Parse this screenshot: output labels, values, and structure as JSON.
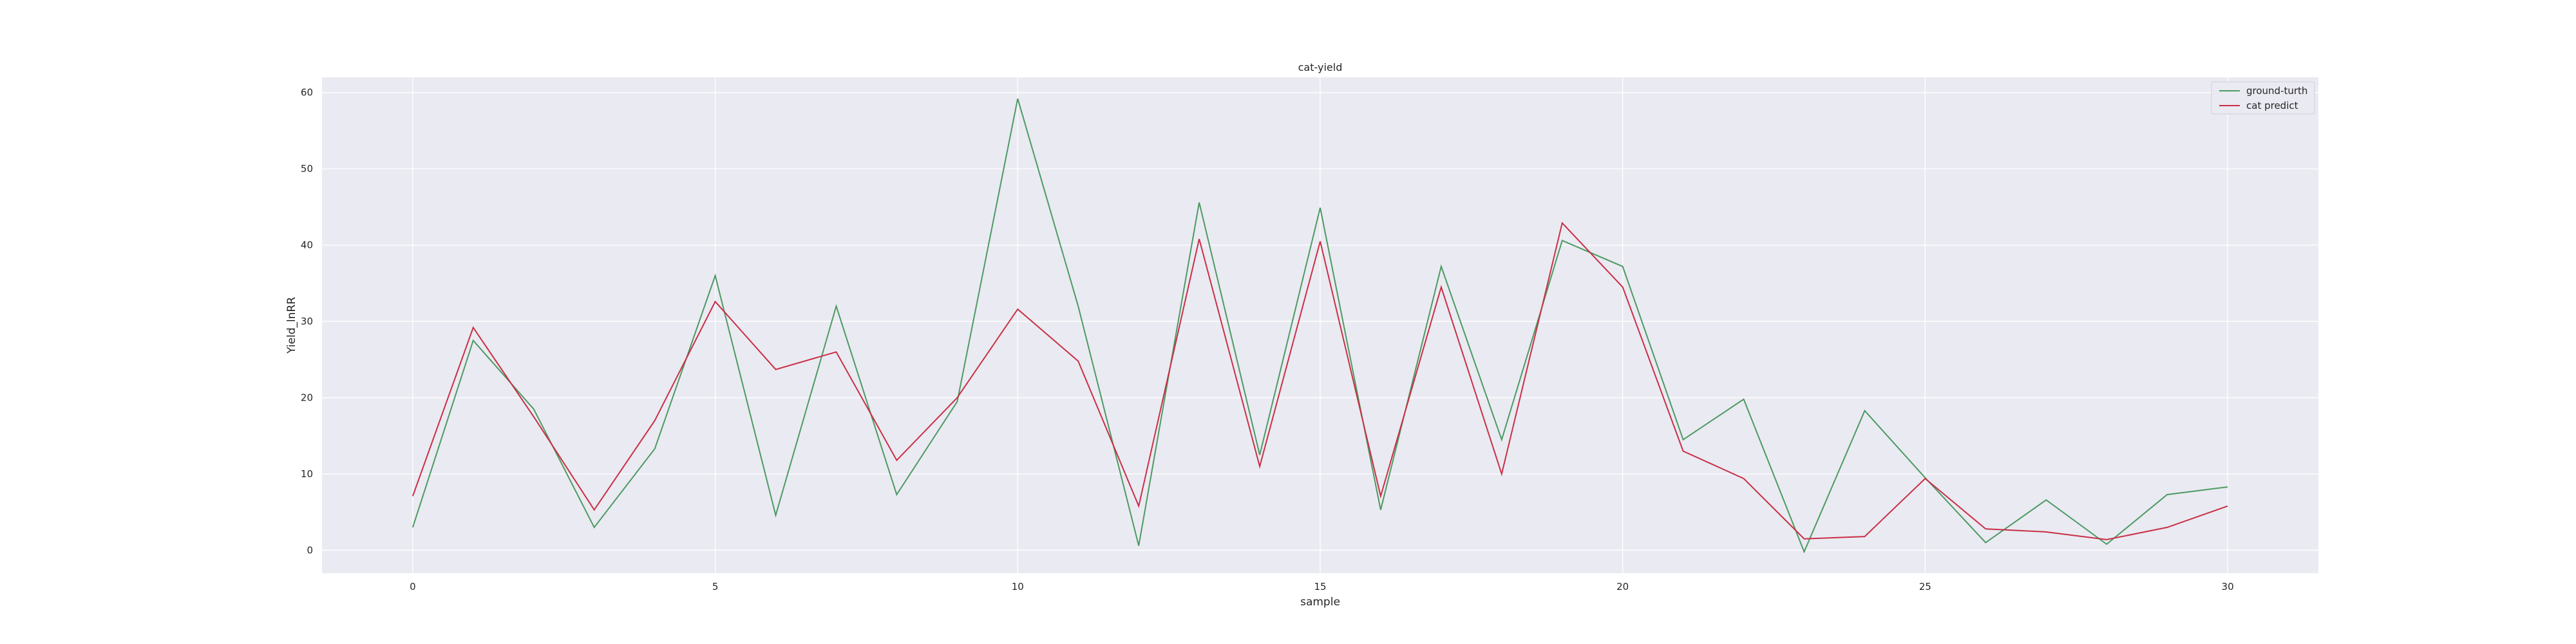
{
  "chart_data": {
    "type": "line",
    "title": "cat-yield",
    "xlabel": "sample",
    "ylabel": "Yield_lnRR",
    "xlim": [
      -1.5,
      31.5
    ],
    "ylim": [
      -3,
      62
    ],
    "xticks": [
      0,
      5,
      10,
      15,
      20,
      25,
      30
    ],
    "yticks": [
      0,
      10,
      20,
      30,
      40,
      50,
      60
    ],
    "grid": true,
    "legend_position": "top-right",
    "x": [
      0,
      1,
      2,
      3,
      4,
      5,
      6,
      7,
      8,
      9,
      10,
      11,
      12,
      13,
      14,
      15,
      16,
      17,
      18,
      19,
      20,
      21,
      22,
      23,
      24,
      25,
      26,
      27,
      28,
      29,
      30
    ],
    "series": [
      {
        "name": "ground-turth",
        "color": "#4c9a62",
        "values": [
          3.0,
          27.5,
          18.5,
          3.0,
          13.3,
          36.0,
          4.6,
          32.0,
          7.3,
          19.5,
          59.2,
          32.0,
          0.6,
          45.6,
          12.5,
          44.9,
          5.3,
          37.2,
          14.5,
          40.6,
          37.2,
          14.5,
          19.8,
          -0.2,
          18.3,
          9.5,
          1.0,
          6.6,
          0.8,
          7.3,
          8.3
        ]
      },
      {
        "name": "cat predict",
        "color": "#c92f45",
        "values": [
          7.1,
          29.2,
          17.5,
          5.3,
          17.0,
          32.6,
          23.7,
          26.0,
          11.8,
          20.0,
          31.6,
          24.8,
          5.8,
          40.8,
          11.0,
          40.5,
          7.1,
          34.5,
          10.0,
          42.9,
          34.5,
          13.0,
          9.4,
          1.5,
          1.8,
          9.4,
          2.8,
          2.4,
          1.4,
          3.0,
          5.8
        ]
      }
    ]
  }
}
